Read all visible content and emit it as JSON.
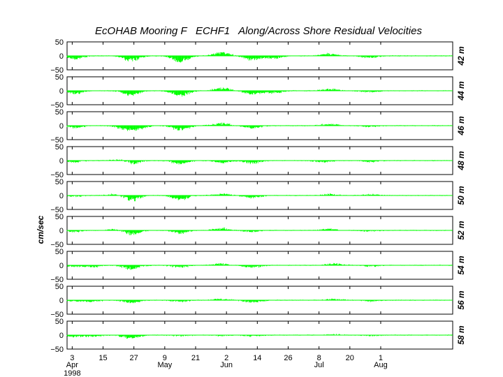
{
  "chart_data": {
    "type": "line",
    "title": "EcOHAB Mooring F   ECHF1   Along/Across Shore Residual Velocities",
    "ylabel": "cm/sec",
    "ylim": [
      -50,
      50
    ],
    "y_ticks": [
      "50",
      "0",
      "−50"
    ],
    "line_color": "#00ff00",
    "x_tick_labels": [
      "3",
      "15",
      "27",
      "9",
      "21",
      "2",
      "14",
      "26",
      "8",
      "20",
      "1"
    ],
    "month_labels": [
      "Apr",
      "May",
      "Jun",
      "Jul",
      "Aug"
    ],
    "year_label": "1998",
    "panels": [
      {
        "depth": "42 m",
        "events": [
          [
            3,
            -12
          ],
          [
            25,
            -18
          ],
          [
            44,
            -20
          ],
          [
            60,
            12
          ],
          [
            72,
            -15
          ],
          [
            80,
            -10
          ],
          [
            102,
            8
          ],
          [
            118,
            -8
          ]
        ]
      },
      {
        "depth": "44 m",
        "events": [
          [
            3,
            -10
          ],
          [
            25,
            -16
          ],
          [
            44,
            -18
          ],
          [
            60,
            10
          ],
          [
            72,
            -12
          ],
          [
            80,
            -9
          ],
          [
            102,
            7
          ],
          [
            118,
            -6
          ]
        ]
      },
      {
        "depth": "46 m",
        "events": [
          [
            3,
            -8
          ],
          [
            22,
            -10
          ],
          [
            27,
            -15
          ],
          [
            44,
            -16
          ],
          [
            60,
            9
          ],
          [
            72,
            -9
          ],
          [
            102,
            6
          ],
          [
            118,
            -5
          ]
        ]
      },
      {
        "depth": "48 m",
        "events": [
          [
            3,
            -6
          ],
          [
            22,
            8
          ],
          [
            25,
            -14
          ],
          [
            44,
            -12
          ],
          [
            60,
            -8
          ],
          [
            72,
            -10
          ],
          [
            100,
            -6
          ],
          [
            118,
            -5
          ]
        ]
      },
      {
        "depth": "50 m",
        "events": [
          [
            3,
            -5
          ],
          [
            19,
            6
          ],
          [
            25,
            -18
          ],
          [
            44,
            -14
          ],
          [
            60,
            6
          ],
          [
            72,
            -8
          ],
          [
            102,
            5
          ],
          [
            118,
            4
          ]
        ]
      },
      {
        "depth": "52 m",
        "events": [
          [
            3,
            -5
          ],
          [
            19,
            5
          ],
          [
            25,
            -14
          ],
          [
            44,
            -10
          ],
          [
            60,
            8
          ],
          [
            72,
            -6
          ],
          [
            102,
            5
          ],
          [
            118,
            -4
          ]
        ]
      },
      {
        "depth": "54 m",
        "events": [
          [
            3,
            -4
          ],
          [
            10,
            -6
          ],
          [
            25,
            -14
          ],
          [
            44,
            -8
          ],
          [
            60,
            6
          ],
          [
            72,
            -8
          ],
          [
            104,
            6
          ],
          [
            118,
            -4
          ]
        ]
      },
      {
        "depth": "56 m",
        "events": [
          [
            3,
            -4
          ],
          [
            10,
            -5
          ],
          [
            25,
            -10
          ],
          [
            44,
            -6
          ],
          [
            60,
            5
          ],
          [
            72,
            -9
          ],
          [
            104,
            5
          ],
          [
            118,
            -4
          ]
        ]
      },
      {
        "depth": "58 m",
        "events": [
          [
            3,
            -6
          ],
          [
            10,
            -5
          ],
          [
            25,
            -12
          ],
          [
            44,
            -4
          ],
          [
            60,
            -3
          ],
          [
            72,
            -4
          ],
          [
            104,
            3
          ],
          [
            118,
            -3
          ]
        ]
      }
    ]
  }
}
